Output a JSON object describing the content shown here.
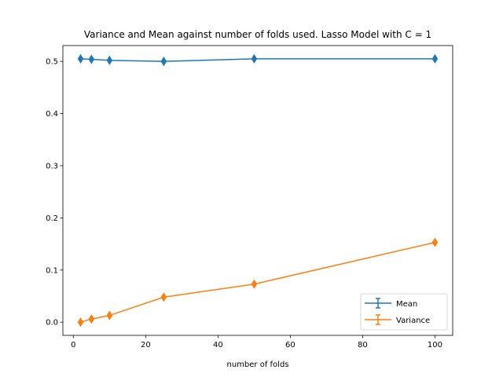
{
  "chart_data": {
    "type": "line",
    "title": "Variance and Mean against number of folds used. Lasso Model with C = 1",
    "xlabel": "number of folds",
    "ylabel": "",
    "x": [
      2,
      5,
      10,
      25,
      50,
      100
    ],
    "xlim": [
      -2.9,
      104.9
    ],
    "ylim": [
      -0.0253,
      0.5304
    ],
    "xticks": [
      0,
      20,
      40,
      60,
      80,
      100
    ],
    "yticks": [
      0.0,
      0.1,
      0.2,
      0.3,
      0.4,
      0.5
    ],
    "xtick_labels": [
      "0",
      "20",
      "40",
      "60",
      "80",
      "100"
    ],
    "ytick_labels": [
      "0.0",
      "0.1",
      "0.2",
      "0.3",
      "0.4",
      "0.5"
    ],
    "grid": false,
    "legend_position": "lower-right",
    "marker": "thin-diamond",
    "series": [
      {
        "name": "Mean",
        "color": "#1f77b4",
        "values": [
          0.505,
          0.504,
          0.502,
          0.5,
          0.505,
          0.505
        ]
      },
      {
        "name": "Variance",
        "color": "#ff7f0e",
        "values": [
          0.0,
          0.006,
          0.013,
          0.048,
          0.073,
          0.153
        ]
      }
    ]
  }
}
